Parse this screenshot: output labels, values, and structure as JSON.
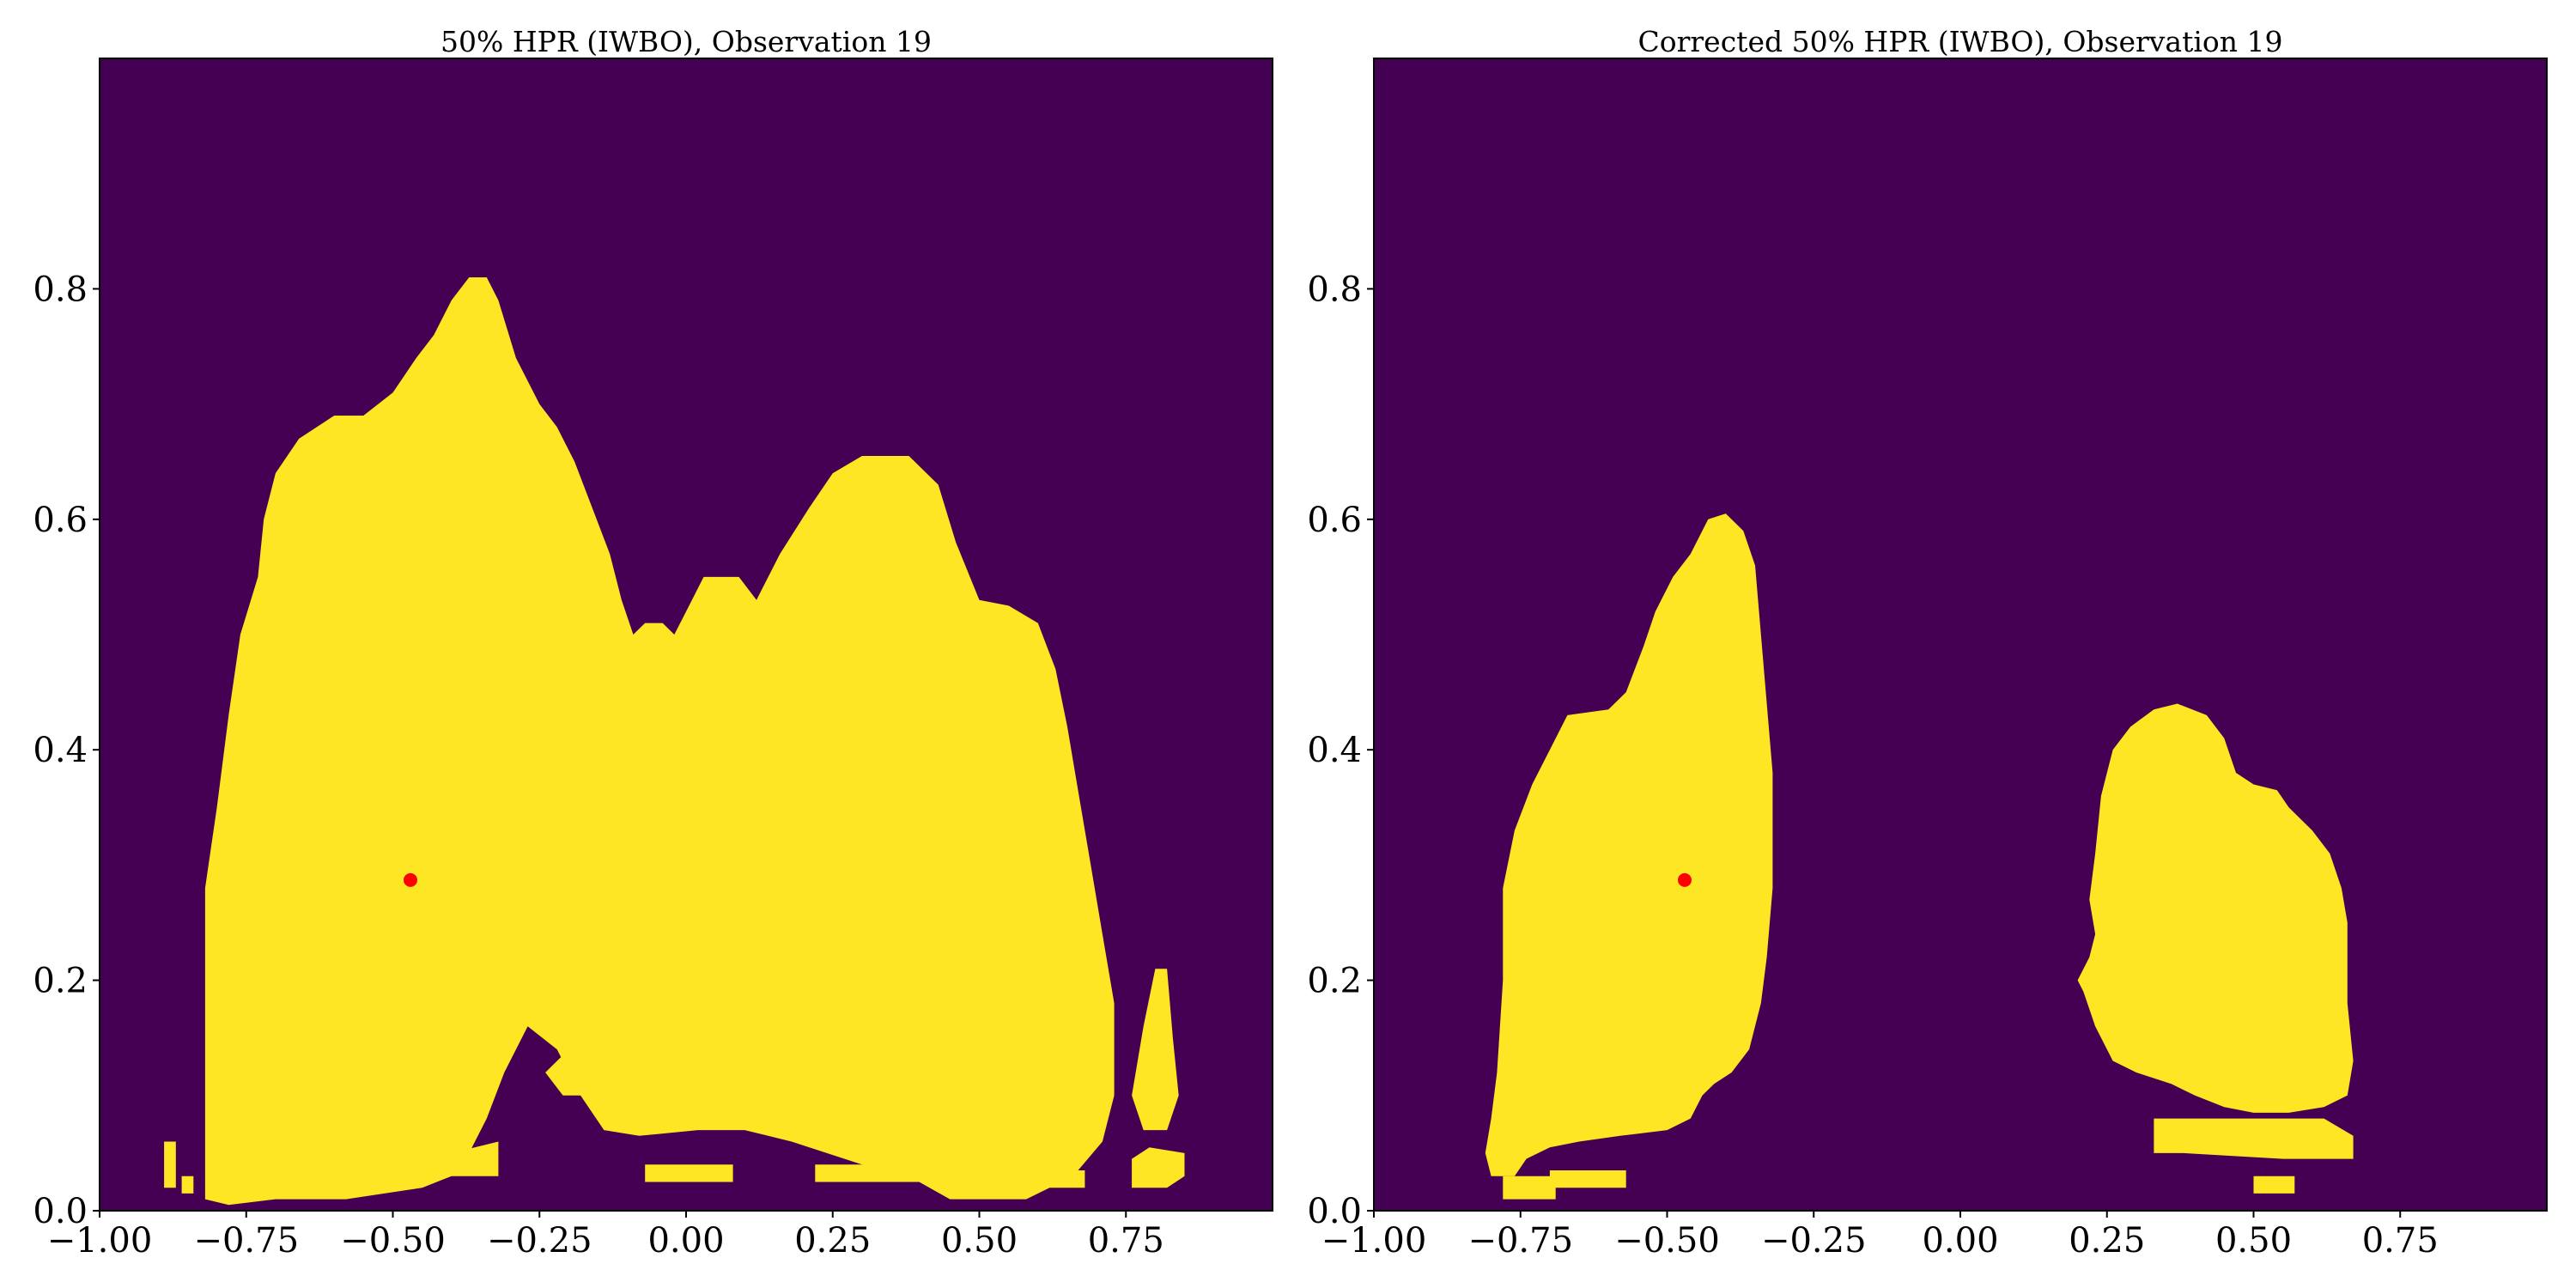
{
  "chart_data": [
    {
      "type": "heatmap",
      "title": "50% HPR (IWBO), Observation 19",
      "xlabel": "",
      "ylabel": "",
      "xlim": [
        -1.0,
        1.0
      ],
      "ylim": [
        0.0,
        1.0
      ],
      "xticks": [
        -1.0,
        -0.75,
        -0.5,
        -0.25,
        0.0,
        0.25,
        0.5,
        0.75
      ],
      "xtick_labels": [
        "−1.00",
        "−0.75",
        "−0.50",
        "−0.25",
        "0.00",
        "0.25",
        "0.50",
        "0.75"
      ],
      "yticks": [
        0.0,
        0.2,
        0.4,
        0.6,
        0.8
      ],
      "ytick_labels": [
        "0.0",
        "0.2",
        "0.4",
        "0.6",
        "0.8"
      ],
      "background_color": "#440154",
      "region_color": "#fde725",
      "marker_color": "#ff0000",
      "marker": {
        "x": -0.47,
        "y": 0.287
      },
      "regions": [
        {
          "outline": [
            [
              -0.82,
              0.01
            ],
            [
              -0.82,
              0.28
            ],
            [
              -0.8,
              0.35
            ],
            [
              -0.78,
              0.43
            ],
            [
              -0.76,
              0.5
            ],
            [
              -0.73,
              0.55
            ],
            [
              -0.72,
              0.6
            ],
            [
              -0.7,
              0.64
            ],
            [
              -0.66,
              0.67
            ],
            [
              -0.6,
              0.69
            ],
            [
              -0.55,
              0.69
            ],
            [
              -0.5,
              0.71
            ],
            [
              -0.46,
              0.74
            ],
            [
              -0.43,
              0.76
            ],
            [
              -0.4,
              0.79
            ],
            [
              -0.37,
              0.81
            ],
            [
              -0.34,
              0.81
            ],
            [
              -0.32,
              0.79
            ],
            [
              -0.29,
              0.74
            ],
            [
              -0.25,
              0.7
            ],
            [
              -0.22,
              0.68
            ],
            [
              -0.19,
              0.65
            ],
            [
              -0.16,
              0.61
            ],
            [
              -0.13,
              0.57
            ],
            [
              -0.11,
              0.53
            ],
            [
              -0.09,
              0.5
            ],
            [
              -0.07,
              0.51
            ],
            [
              -0.04,
              0.51
            ],
            [
              -0.02,
              0.5
            ],
            [
              0.0,
              0.52
            ],
            [
              0.03,
              0.55
            ],
            [
              0.09,
              0.55
            ],
            [
              0.12,
              0.53
            ],
            [
              0.16,
              0.57
            ],
            [
              0.21,
              0.61
            ],
            [
              0.25,
              0.64
            ],
            [
              0.3,
              0.655
            ],
            [
              0.38,
              0.655
            ],
            [
              0.43,
              0.63
            ],
            [
              0.46,
              0.58
            ],
            [
              0.5,
              0.53
            ],
            [
              0.55,
              0.525
            ],
            [
              0.6,
              0.51
            ],
            [
              0.63,
              0.47
            ],
            [
              0.65,
              0.42
            ],
            [
              0.67,
              0.36
            ],
            [
              0.69,
              0.3
            ],
            [
              0.71,
              0.24
            ],
            [
              0.73,
              0.18
            ],
            [
              0.73,
              0.1
            ],
            [
              0.71,
              0.06
            ],
            [
              0.66,
              0.03
            ],
            [
              0.58,
              0.01
            ],
            [
              0.45,
              0.01
            ],
            [
              0.38,
              0.03
            ],
            [
              0.3,
              0.04
            ],
            [
              0.24,
              0.05
            ],
            [
              0.18,
              0.06
            ],
            [
              0.1,
              0.07
            ],
            [
              0.02,
              0.07
            ],
            [
              -0.08,
              0.065
            ],
            [
              -0.14,
              0.07
            ],
            [
              -0.18,
              0.1
            ],
            [
              -0.22,
              0.14
            ],
            [
              -0.27,
              0.16
            ],
            [
              -0.31,
              0.12
            ],
            [
              -0.34,
              0.08
            ],
            [
              -0.37,
              0.05
            ],
            [
              -0.4,
              0.03
            ],
            [
              -0.45,
              0.02
            ],
            [
              -0.58,
              0.01
            ],
            [
              -0.7,
              0.01
            ],
            [
              -0.78,
              0.005
            ]
          ]
        },
        {
          "outline": [
            [
              -0.24,
              0.12
            ],
            [
              -0.21,
              0.1
            ],
            [
              -0.17,
              0.1
            ],
            [
              -0.15,
              0.12
            ],
            [
              -0.2,
              0.14
            ]
          ]
        },
        {
          "outline": [
            [
              -0.42,
              0.03
            ],
            [
              -0.32,
              0.03
            ],
            [
              -0.32,
              0.06
            ],
            [
              -0.4,
              0.05
            ]
          ]
        },
        {
          "outline": [
            [
              0.76,
              0.1
            ],
            [
              0.78,
              0.16
            ],
            [
              0.8,
              0.21
            ],
            [
              0.82,
              0.21
            ],
            [
              0.83,
              0.15
            ],
            [
              0.84,
              0.1
            ],
            [
              0.82,
              0.07
            ],
            [
              0.78,
              0.07
            ]
          ]
        },
        {
          "outline": [
            [
              0.76,
              0.02
            ],
            [
              0.76,
              0.045
            ],
            [
              0.79,
              0.055
            ],
            [
              0.85,
              0.05
            ],
            [
              0.85,
              0.03
            ],
            [
              0.82,
              0.02
            ]
          ]
        },
        {
          "outline": [
            [
              -0.89,
              0.02
            ],
            [
              -0.89,
              0.06
            ],
            [
              -0.87,
              0.06
            ],
            [
              -0.87,
              0.02
            ]
          ]
        },
        {
          "outline": [
            [
              -0.86,
              0.015
            ],
            [
              -0.86,
              0.03
            ],
            [
              -0.84,
              0.03
            ],
            [
              -0.84,
              0.015
            ]
          ]
        },
        {
          "outline": [
            [
              -0.07,
              0.025
            ],
            [
              -0.07,
              0.04
            ],
            [
              0.08,
              0.04
            ],
            [
              0.08,
              0.025
            ]
          ]
        },
        {
          "outline": [
            [
              0.22,
              0.025
            ],
            [
              0.22,
              0.04
            ],
            [
              0.4,
              0.04
            ],
            [
              0.4,
              0.025
            ]
          ]
        },
        {
          "outline": [
            [
              0.62,
              0.02
            ],
            [
              0.62,
              0.035
            ],
            [
              0.68,
              0.035
            ],
            [
              0.68,
              0.02
            ]
          ]
        }
      ]
    },
    {
      "type": "heatmap",
      "title": "Corrected 50% HPR (IWBO), Observation 19",
      "xlabel": "",
      "ylabel": "",
      "xlim": [
        -1.0,
        1.0
      ],
      "ylim": [
        0.0,
        1.0
      ],
      "xticks": [
        -1.0,
        -0.75,
        -0.5,
        -0.25,
        0.0,
        0.25,
        0.5,
        0.75
      ],
      "xtick_labels": [
        "−1.00",
        "−0.75",
        "−0.50",
        "−0.25",
        "0.00",
        "0.25",
        "0.50",
        "0.75"
      ],
      "yticks": [
        0.0,
        0.2,
        0.4,
        0.6,
        0.8
      ],
      "ytick_labels": [
        "0.0",
        "0.2",
        "0.4",
        "0.6",
        "0.8"
      ],
      "background_color": "#440154",
      "region_color": "#fde725",
      "marker_color": "#ff0000",
      "marker": {
        "x": -0.47,
        "y": 0.287
      },
      "regions": [
        {
          "outline": [
            [
              -0.8,
              0.03
            ],
            [
              -0.81,
              0.05
            ],
            [
              -0.8,
              0.08
            ],
            [
              -0.79,
              0.12
            ],
            [
              -0.78,
              0.2
            ],
            [
              -0.78,
              0.28
            ],
            [
              -0.76,
              0.33
            ],
            [
              -0.73,
              0.37
            ],
            [
              -0.7,
              0.4
            ],
            [
              -0.67,
              0.43
            ],
            [
              -0.6,
              0.435
            ],
            [
              -0.57,
              0.45
            ],
            [
              -0.54,
              0.49
            ],
            [
              -0.52,
              0.52
            ],
            [
              -0.49,
              0.55
            ],
            [
              -0.46,
              0.57
            ],
            [
              -0.43,
              0.6
            ],
            [
              -0.4,
              0.605
            ],
            [
              -0.37,
              0.59
            ],
            [
              -0.35,
              0.56
            ],
            [
              -0.34,
              0.5
            ],
            [
              -0.33,
              0.44
            ],
            [
              -0.32,
              0.38
            ],
            [
              -0.32,
              0.28
            ],
            [
              -0.33,
              0.22
            ],
            [
              -0.34,
              0.18
            ],
            [
              -0.36,
              0.14
            ],
            [
              -0.39,
              0.12
            ],
            [
              -0.42,
              0.11
            ],
            [
              -0.44,
              0.1
            ],
            [
              -0.46,
              0.08
            ],
            [
              -0.5,
              0.07
            ],
            [
              -0.58,
              0.065
            ],
            [
              -0.65,
              0.06
            ],
            [
              -0.7,
              0.055
            ],
            [
              -0.74,
              0.045
            ],
            [
              -0.76,
              0.03
            ]
          ]
        },
        {
          "outline": [
            [
              -0.78,
              0.01
            ],
            [
              -0.78,
              0.03
            ],
            [
              -0.69,
              0.03
            ],
            [
              -0.69,
              0.01
            ]
          ]
        },
        {
          "outline": [
            [
              -0.7,
              0.02
            ],
            [
              -0.7,
              0.035
            ],
            [
              -0.57,
              0.035
            ],
            [
              -0.57,
              0.02
            ]
          ]
        },
        {
          "outline": [
            [
              0.2,
              0.2
            ],
            [
              0.21,
              0.19
            ],
            [
              0.23,
              0.16
            ],
            [
              0.26,
              0.13
            ],
            [
              0.3,
              0.12
            ],
            [
              0.36,
              0.11
            ],
            [
              0.4,
              0.1
            ],
            [
              0.45,
              0.09
            ],
            [
              0.5,
              0.085
            ],
            [
              0.56,
              0.085
            ],
            [
              0.62,
              0.09
            ],
            [
              0.66,
              0.1
            ],
            [
              0.67,
              0.13
            ],
            [
              0.66,
              0.18
            ],
            [
              0.66,
              0.25
            ],
            [
              0.65,
              0.28
            ],
            [
              0.63,
              0.31
            ],
            [
              0.6,
              0.33
            ],
            [
              0.56,
              0.35
            ],
            [
              0.54,
              0.365
            ],
            [
              0.5,
              0.37
            ],
            [
              0.47,
              0.38
            ],
            [
              0.45,
              0.41
            ],
            [
              0.42,
              0.43
            ],
            [
              0.37,
              0.44
            ],
            [
              0.33,
              0.435
            ],
            [
              0.29,
              0.42
            ],
            [
              0.26,
              0.4
            ],
            [
              0.24,
              0.36
            ],
            [
              0.23,
              0.31
            ],
            [
              0.22,
              0.27
            ],
            [
              0.23,
              0.24
            ],
            [
              0.22,
              0.22
            ]
          ]
        },
        {
          "outline": [
            [
              0.33,
              0.05
            ],
            [
              0.33,
              0.08
            ],
            [
              0.4,
              0.08
            ],
            [
              0.62,
              0.08
            ],
            [
              0.67,
              0.065
            ],
            [
              0.67,
              0.045
            ],
            [
              0.55,
              0.045
            ],
            [
              0.38,
              0.05
            ]
          ]
        },
        {
          "outline": [
            [
              0.5,
              0.015
            ],
            [
              0.5,
              0.03
            ],
            [
              0.57,
              0.03
            ],
            [
              0.57,
              0.015
            ]
          ]
        }
      ]
    }
  ]
}
